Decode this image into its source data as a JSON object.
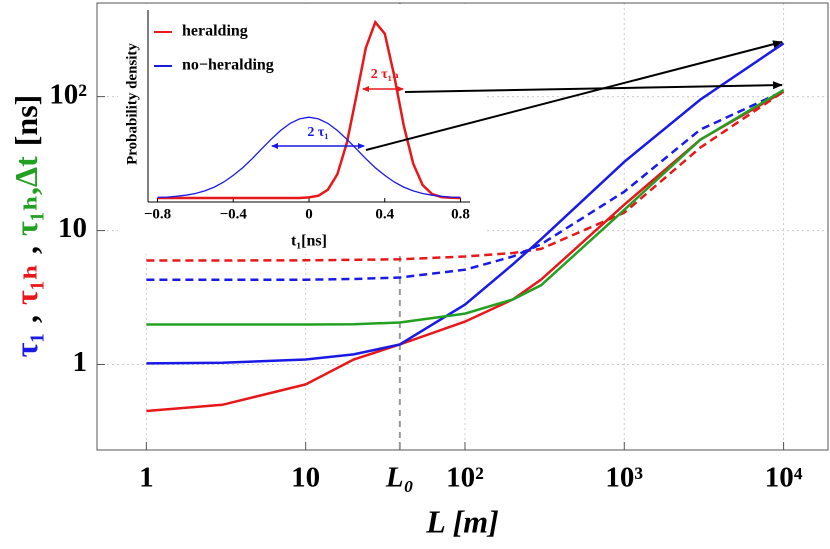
{
  "chart_data": [
    {
      "type": "line",
      "log_x": true,
      "log_y": true,
      "grid": true,
      "xlabel": "L [m]",
      "ylabel": [
        {
          "text": "τ₁",
          "color": "#1a1ae6"
        },
        {
          "text": ",",
          "color": "#000000"
        },
        {
          "text": "τ₁ₕ",
          "color": "#e8171a"
        },
        {
          "text": ",",
          "color": "#000000"
        },
        {
          "text": "τ₁ₕ,Δt",
          "color": "#22a022"
        },
        {
          "text": "[ns]",
          "color": "#000000"
        }
      ],
      "xlim": [
        0.49,
        19000
      ],
      "ylim": [
        0.23,
        500
      ],
      "xticks": [
        1,
        10,
        {
          "value": 39,
          "label": "L₀"
        },
        {
          "value": 100,
          "label": "10²"
        },
        {
          "value": 1000,
          "label": "10³"
        },
        {
          "value": 10000,
          "label": "10⁴"
        }
      ],
      "yticks": [
        1,
        10,
        {
          "value": 100,
          "label": "10²"
        }
      ],
      "vline_x": 39,
      "x": [
        1,
        3,
        10,
        20,
        39,
        100,
        200,
        300,
        1000,
        3000,
        10000
      ],
      "series": [
        {
          "color": "#e8171a",
          "dash": true,
          "values": [
            5.98,
            5.98,
            6.0,
            6.05,
            6.1,
            6.4,
            6.8,
            7.3,
            13.6,
            41.6,
            109
          ]
        },
        {
          "color": "#1a1ae6",
          "dash": true,
          "values": [
            4.3,
            4.3,
            4.3,
            4.35,
            4.46,
            5.1,
            6.4,
            7.9,
            19.5,
            56.7,
            110
          ]
        },
        {
          "color": "#e8171a",
          "dash": false,
          "values": [
            0.45,
            0.5,
            0.71,
            1.09,
            1.41,
            2.09,
            3.06,
            4.3,
            15.6,
            47.7,
            109
          ]
        },
        {
          "color": "#1a1ae6",
          "dash": false,
          "values": [
            1.02,
            1.03,
            1.09,
            1.19,
            1.41,
            2.8,
            5.6,
            8.6,
            32.6,
            95,
            250
          ]
        },
        {
          "color": "#22a022",
          "dash": false,
          "values": [
            1.99,
            1.99,
            1.99,
            2.0,
            2.06,
            2.4,
            3.06,
            3.9,
            14.3,
            47.7,
            112
          ]
        }
      ]
    },
    {
      "type": "line",
      "xlabel": "t₁[ns]",
      "ylabel": "Probability density",
      "xlim": [
        -0.85,
        0.85
      ],
      "ylim": [
        0,
        1
      ],
      "xticks": [
        {
          "value": -0.8,
          "label": "−0.8"
        },
        {
          "value": -0.4,
          "label": "−0.4"
        },
        0,
        0.4,
        0.8
      ],
      "annotations": [
        {
          "text": "2 τ₁",
          "color": "#1a1ae6"
        },
        {
          "text": "2 τ₁ₕ",
          "color": "#e8171a"
        }
      ],
      "x": [
        -0.8,
        -0.75,
        -0.7,
        -0.65,
        -0.6,
        -0.55,
        -0.5,
        -0.45,
        -0.4,
        -0.35,
        -0.3,
        -0.25,
        -0.2,
        -0.15,
        -0.1,
        -0.05,
        0,
        0.05,
        0.1,
        0.15,
        0.2,
        0.25,
        0.3,
        0.35,
        0.4,
        0.45,
        0.5,
        0.55,
        0.6,
        0.65,
        0.7,
        0.75,
        0.8
      ],
      "series": [
        {
          "name": "heralding",
          "color": "#e8171a",
          "values": [
            0,
            0,
            0,
            0,
            0,
            0,
            0,
            0,
            0,
            0,
            0,
            0,
            0,
            0,
            0,
            0,
            0.003,
            0.012,
            0.044,
            0.127,
            0.294,
            0.543,
            0.798,
            0.935,
            0.874,
            0.651,
            0.386,
            0.183,
            0.069,
            0.021,
            0.005,
            0.001,
            0
          ]
        },
        {
          "name": "no−heralding",
          "color": "#1a1ae6",
          "values": [
            0.003,
            0.005,
            0.009,
            0.015,
            0.024,
            0.038,
            0.058,
            0.085,
            0.12,
            0.161,
            0.209,
            0.261,
            0.312,
            0.359,
            0.397,
            0.421,
            0.43,
            0.421,
            0.397,
            0.359,
            0.312,
            0.261,
            0.209,
            0.161,
            0.12,
            0.085,
            0.058,
            0.038,
            0.024,
            0.015,
            0.009,
            0.005,
            0.003
          ]
        }
      ]
    }
  ]
}
